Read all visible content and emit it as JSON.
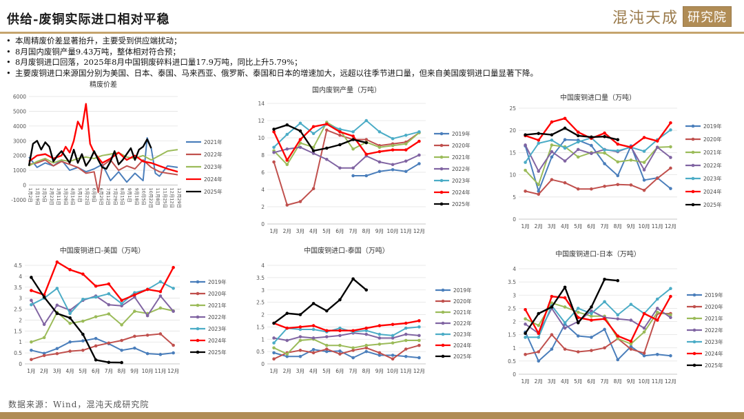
{
  "header": {
    "title": "供给-废铜实际进口相对平稳",
    "logo_text": "混沌天成",
    "logo_box": "研究院"
  },
  "bullets": [
    "本周精废价差显著抬升，主要受到供应端扰动；",
    "8月国内废铜产量9.43万吨，整体相对符合预；",
    "8月废铜进口回落，2025年8月中国铜废碎料进口量17.9万吨，同比上升5.79%；",
    "主要废铜进口来源国分别为美国、日本、泰国、马来西亚、俄罗斯、泰国和日本的增速加大，远超以往季节进口量，但来自美国废铜进口量显著下降。"
  ],
  "footer": {
    "source": "数据来源：Wind，混沌天成研究院"
  },
  "colors": {
    "2019年": "#4a7ebb",
    "2020年": "#c0504d",
    "2021年": "#9bbb59",
    "2022年": "#8064a2",
    "2023年": "#4bacc6",
    "2024年": "#ff0000",
    "2025年": "#000000",
    "2021年_spread": "#4a7ebb",
    "2022年_spread": "#c0504d",
    "2023年_spread": "#9bbb59"
  },
  "chart_data": [
    {
      "id": "spread",
      "type": "line",
      "title": "精废价差",
      "ylim": [
        -1000,
        6000
      ],
      "yticks": [
        -1000,
        0,
        1000,
        2000,
        3000,
        4000,
        5000,
        6000
      ],
      "x_tick_labels": [
        "1月2日",
        "1月19日",
        "2月5日",
        "2月23日",
        "3月11日",
        "3月28日",
        "4月14日",
        "5月1日",
        "5月22日",
        "6月8日",
        "6月25日",
        "7月12日",
        "7月29日",
        "8月15日",
        "9月1日",
        "9月18日",
        "10月5日",
        "10月22日",
        "11月8日",
        "11月25日",
        "12月12日",
        "12月29日"
      ],
      "x_range": [
        0,
        365
      ],
      "series": [
        {
          "name": "2021年",
          "color_key": "2021年_spread",
          "x": [
            0,
            20,
            40,
            60,
            80,
            100,
            120,
            140,
            160,
            180,
            200,
            220,
            240,
            260,
            280,
            290,
            300,
            310,
            320,
            340,
            365
          ],
          "y": [
            1900,
            1200,
            1500,
            1300,
            1700,
            1000,
            1200,
            900,
            1100,
            1400,
            300,
            900,
            200,
            800,
            300,
            3200,
            2500,
            800,
            600,
            1300,
            1200
          ]
        },
        {
          "name": "2022年",
          "color_key": "2022年_spread",
          "x": [
            0,
            20,
            40,
            60,
            80,
            100,
            120,
            140,
            160,
            170,
            180,
            200,
            220,
            240,
            260,
            280,
            300,
            320,
            340,
            365
          ],
          "y": [
            1400,
            1500,
            1700,
            1300,
            1600,
            1400,
            1200,
            800,
            900,
            -500,
            1300,
            1700,
            1000,
            1300,
            1100,
            1700,
            1200,
            900,
            800,
            700
          ]
        },
        {
          "name": "2023年",
          "color_key": "2023年_spread",
          "x": [
            0,
            20,
            40,
            60,
            80,
            100,
            120,
            140,
            160,
            180,
            200,
            220,
            240,
            260,
            280,
            300,
            320,
            340,
            365
          ],
          "y": [
            1300,
            1600,
            1800,
            1500,
            1700,
            1600,
            1800,
            1900,
            1800,
            2000,
            2100,
            2200,
            1900,
            1800,
            2000,
            1700,
            2000,
            2300,
            2400
          ]
        },
        {
          "name": "2024年",
          "color_key": "2024年",
          "x": [
            0,
            20,
            40,
            60,
            80,
            90,
            100,
            110,
            120,
            130,
            140,
            150,
            160,
            180,
            200,
            220,
            240,
            260,
            280,
            300,
            320,
            340,
            365
          ],
          "y": [
            1600,
            2000,
            2100,
            1800,
            2000,
            2600,
            2200,
            3000,
            4300,
            3800,
            5500,
            2800,
            2200,
            1500,
            1800,
            2200,
            1700,
            2000,
            1600,
            1500,
            1300,
            1100,
            900
          ]
        },
        {
          "name": "2025年",
          "color_key": "2025年",
          "x": [
            0,
            10,
            20,
            30,
            40,
            50,
            60,
            70,
            80,
            90,
            100,
            110,
            120,
            130,
            140,
            150,
            160,
            170,
            180,
            190,
            200,
            210,
            220,
            230,
            240,
            250,
            260,
            270,
            280,
            290,
            300
          ],
          "y": [
            1300,
            2800,
            3000,
            2400,
            2900,
            2600,
            1600,
            2000,
            2300,
            1900,
            1500,
            2400,
            1500,
            2100,
            1300,
            1700,
            2300,
            1700,
            1200,
            1100,
            1600,
            2300,
            1400,
            1700,
            2100,
            2500,
            1700,
            2400,
            2600,
            3100,
            2500
          ]
        }
      ]
    },
    {
      "id": "domestic",
      "type": "line",
      "title": "国内废铜产量（万吨）",
      "ylim": [
        0,
        14
      ],
      "yticks": [
        0,
        2,
        4,
        6,
        8,
        10,
        12,
        14
      ],
      "categories": [
        "1月",
        "2月",
        "3月",
        "4月",
        "5月",
        "6月",
        "7月",
        "8月",
        "9月",
        "10月",
        "11月",
        "12月"
      ],
      "series": [
        {
          "name": "2019年",
          "values": [
            null,
            null,
            null,
            null,
            null,
            null,
            5.6,
            5.6,
            6.1,
            6.3,
            6.1,
            7.0
          ]
        },
        {
          "name": "2020年",
          "values": [
            7.2,
            2.2,
            2.6,
            4.1,
            10.9,
            10.3,
            9.8,
            9.8,
            9.1,
            9.3,
            9.5,
            10.6
          ]
        },
        {
          "name": "2021年",
          "values": [
            8.5,
            6.9,
            9.4,
            8.9,
            11.8,
            10.9,
            8.7,
            9.5,
            8.9,
            9.1,
            9.3,
            10.6
          ]
        },
        {
          "name": "2022年",
          "values": [
            8.3,
            8.7,
            8.9,
            8.2,
            7.5,
            6.5,
            6.5,
            7.9,
            7.2,
            6.9,
            7.3,
            8.0
          ]
        },
        {
          "name": "2023年",
          "values": [
            8.9,
            10.4,
            11.7,
            10.5,
            11.6,
            11.0,
            10.7,
            12.0,
            10.7,
            9.9,
            10.3,
            10.7
          ]
        },
        {
          "name": "2024年",
          "values": [
            10.7,
            7.4,
            9.8,
            11.3,
            11.6,
            10.7,
            10.2,
            8.1,
            8.4,
            8.6,
            8.6,
            9.6
          ]
        },
        {
          "name": "2025年",
          "values": [
            11.0,
            11.5,
            10.8,
            8.5,
            8.8,
            9.2,
            9.8,
            9.43,
            null,
            null,
            null,
            null
          ]
        }
      ]
    },
    {
      "id": "imports",
      "type": "line",
      "title": "中国废铜进口量（万吨）",
      "ylim": [
        0,
        25
      ],
      "yticks": [
        0,
        5,
        10,
        15,
        20,
        25
      ],
      "categories": [
        "1月",
        "2月",
        "3月",
        "4月",
        "5月",
        "6月",
        "7月",
        "8月",
        "9月",
        "10月",
        "11月",
        "12月"
      ],
      "series": [
        {
          "name": "2019年",
          "values": [
            16.5,
            6.3,
            14.0,
            17.9,
            17.8,
            16.6,
            12.5,
            9.8,
            16.5,
            8.8,
            9.3,
            6.9
          ]
        },
        {
          "name": "2020年",
          "values": [
            6.3,
            5.6,
            8.9,
            8.2,
            6.8,
            6.8,
            7.4,
            7.8,
            7.7,
            6.5,
            9.2,
            11.5
          ]
        },
        {
          "name": "2021年",
          "values": [
            11.0,
            7.8,
            16.7,
            16.3,
            14.0,
            15.0,
            14.9,
            12.9,
            13.3,
            12.8,
            16.2,
            16.3
          ]
        },
        {
          "name": "2022年",
          "values": [
            16.7,
            10.8,
            15.2,
            13.1,
            15.7,
            14.8,
            15.7,
            15.2,
            16.3,
            11.1,
            16.2,
            13.9
          ]
        },
        {
          "name": "2023年",
          "values": [
            12.8,
            17.1,
            17.8,
            16.0,
            17.4,
            18.3,
            15.6,
            15.4,
            16.2,
            15.3,
            17.9,
            20.1
          ]
        },
        {
          "name": "2024年",
          "values": [
            18.8,
            17.8,
            21.9,
            22.7,
            19.6,
            18.2,
            19.4,
            16.9,
            16.2,
            18.4,
            17.6,
            21.7
          ]
        },
        {
          "name": "2025年",
          "values": [
            19.0,
            19.3,
            19.0,
            20.5,
            18.8,
            18.5,
            18.6,
            17.9,
            null,
            null,
            null,
            null
          ]
        }
      ]
    },
    {
      "id": "usa",
      "type": "line",
      "title": "中国废铜进口-美国（万吨）",
      "ylim": [
        0,
        4.5
      ],
      "yticks": [
        0,
        0.5,
        1,
        1.5,
        2,
        2.5,
        3,
        3.5,
        4,
        4.5
      ],
      "categories": [
        "1月",
        "2月",
        "3月",
        "4月",
        "5月",
        "6月",
        "7月",
        "8月",
        "9月",
        "10月",
        "11月",
        "12月"
      ],
      "series": [
        {
          "name": "2019年",
          "values": [
            0.62,
            0.48,
            0.7,
            1.0,
            1.05,
            1.16,
            0.92,
            0.62,
            0.72,
            0.47,
            0.43,
            0.5
          ]
        },
        {
          "name": "2020年",
          "values": [
            0.2,
            0.38,
            0.47,
            0.58,
            0.62,
            0.82,
            0.95,
            1.07,
            1.26,
            1.31,
            1.37,
            0.85
          ]
        },
        {
          "name": "2021年",
          "values": [
            1.0,
            1.2,
            2.35,
            1.85,
            1.95,
            2.15,
            2.28,
            1.78,
            2.4,
            2.3,
            2.55,
            2.42
          ]
        },
        {
          "name": "2022年",
          "values": [
            2.9,
            1.8,
            2.68,
            2.45,
            2.9,
            3.1,
            2.7,
            2.65,
            3.05,
            2.2,
            3.1,
            2.4
          ]
        },
        {
          "name": "2023年",
          "values": [
            2.7,
            3.0,
            3.45,
            2.3,
            2.95,
            3.05,
            3.2,
            2.75,
            3.25,
            3.4,
            3.75,
            3.45
          ]
        },
        {
          "name": "2024年",
          "values": [
            3.35,
            3.15,
            4.65,
            4.3,
            4.1,
            3.55,
            3.65,
            2.9,
            3.15,
            3.4,
            3.3,
            4.4
          ]
        },
        {
          "name": "2025年",
          "values": [
            3.95,
            3.05,
            2.3,
            2.1,
            1.35,
            0.18,
            0.07,
            0.06,
            null,
            null,
            null,
            null
          ]
        }
      ]
    },
    {
      "id": "thailand",
      "type": "line",
      "title": "中国废铜进口-泰国（万吨）",
      "ylim": [
        0,
        4
      ],
      "yticks": [
        0,
        0.5,
        1,
        1.5,
        2,
        2.5,
        3,
        3.5,
        4
      ],
      "categories": [
        "1月",
        "2月",
        "3月",
        "4月",
        "5月",
        "6月",
        "7月",
        "8月",
        "9月",
        "10月",
        "11月",
        "12月"
      ],
      "series": [
        {
          "name": "2019年",
          "values": [
            0.45,
            0.3,
            0.3,
            0.58,
            0.5,
            0.52,
            0.25,
            0.5,
            0.35,
            0.35,
            0.3,
            0.25
          ]
        },
        {
          "name": "2020年",
          "values": [
            0.2,
            0.45,
            0.55,
            0.45,
            0.6,
            0.4,
            0.55,
            0.65,
            0.45,
            0.2,
            0.6,
            0.75
          ]
        },
        {
          "name": "2021年",
          "values": [
            0.65,
            0.4,
            0.95,
            1.0,
            0.75,
            0.75,
            0.65,
            0.75,
            0.8,
            0.85,
            0.95,
            0.95
          ]
        },
        {
          "name": "2022年",
          "values": [
            1.05,
            0.95,
            1.1,
            1.05,
            1.1,
            1.15,
            1.25,
            1.2,
            1.05,
            1.05,
            1.2,
            1.15
          ]
        },
        {
          "name": "2023年",
          "values": [
            0.85,
            1.45,
            1.4,
            1.4,
            1.3,
            1.45,
            1.3,
            1.35,
            1.2,
            1.15,
            1.45,
            1.5
          ]
        },
        {
          "name": "2024年",
          "values": [
            1.65,
            1.45,
            1.5,
            1.55,
            1.35,
            1.35,
            1.35,
            1.45,
            1.55,
            1.6,
            1.65,
            1.75
          ]
        },
        {
          "name": "2025年",
          "values": [
            1.65,
            2.05,
            2.0,
            2.45,
            2.15,
            2.6,
            3.45,
            3.0,
            null,
            null,
            null,
            null
          ]
        }
      ]
    },
    {
      "id": "japan",
      "type": "line",
      "title": "中国废铜进口-日本（万吨）",
      "ylim": [
        0,
        4
      ],
      "yticks": [
        0,
        0.5,
        1,
        1.5,
        2,
        2.5,
        3,
        3.5,
        4
      ],
      "categories": [
        "1月",
        "2月",
        "3月",
        "4月",
        "5月",
        "6月",
        "7月",
        "8月",
        "9月",
        "10月",
        "11月",
        "12月"
      ],
      "series": [
        {
          "name": "2019年",
          "values": [
            1.6,
            0.5,
            0.95,
            1.9,
            1.45,
            1.4,
            1.7,
            0.55,
            1.05,
            0.7,
            0.75,
            0.7
          ]
        },
        {
          "name": "2020年",
          "values": [
            0.75,
            0.85,
            1.5,
            0.95,
            0.85,
            0.9,
            1.0,
            1.35,
            0.95,
            0.8,
            2.3,
            2.3
          ]
        },
        {
          "name": "2021年",
          "values": [
            2.1,
            1.85,
            2.7,
            2.55,
            2.35,
            2.2,
            2.2,
            1.35,
            1.15,
            1.6,
            2.35,
            2.25
          ]
        },
        {
          "name": "2022年",
          "values": [
            1.9,
            1.55,
            2.5,
            1.75,
            2.0,
            2.4,
            2.15,
            2.1,
            2.05,
            1.75,
            2.5,
            2.15
          ]
        },
        {
          "name": "2023年",
          "values": [
            1.4,
            1.4,
            2.6,
            1.95,
            2.5,
            2.3,
            2.75,
            2.25,
            2.65,
            2.3,
            2.85,
            3.25
          ]
        },
        {
          "name": "2024年",
          "values": [
            2.45,
            1.55,
            2.95,
            2.9,
            2.15,
            2.05,
            2.1,
            1.45,
            1.25,
            2.3,
            2.05,
            2.95
          ]
        },
        {
          "name": "2025年",
          "values": [
            1.55,
            2.3,
            2.55,
            3.3,
            1.95,
            2.55,
            3.6,
            3.55,
            null,
            null,
            null,
            null
          ]
        }
      ]
    }
  ]
}
